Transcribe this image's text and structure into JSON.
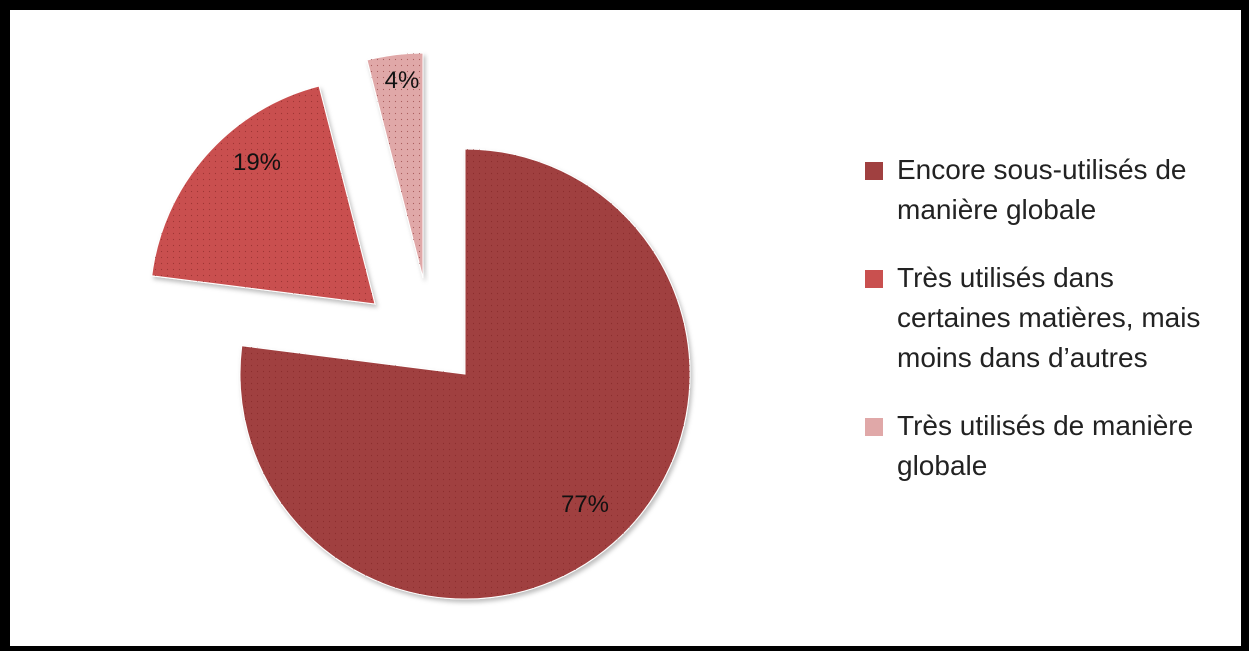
{
  "chart_data": {
    "type": "pie",
    "exploded": true,
    "slices": [
      {
        "name": "Encore sous-utilisés de manière globale",
        "value": 77,
        "label": "77%",
        "color": "#A04040"
      },
      {
        "name": "Très utilisés dans certaines matières, mais moins dans d’autres",
        "value": 19,
        "label": "19%",
        "color": "#C9504F"
      },
      {
        "name": "Très utilisés de manière globale",
        "value": 4,
        "label": "4%",
        "color": "#E0A8A8"
      }
    ],
    "legend_position": "right"
  }
}
